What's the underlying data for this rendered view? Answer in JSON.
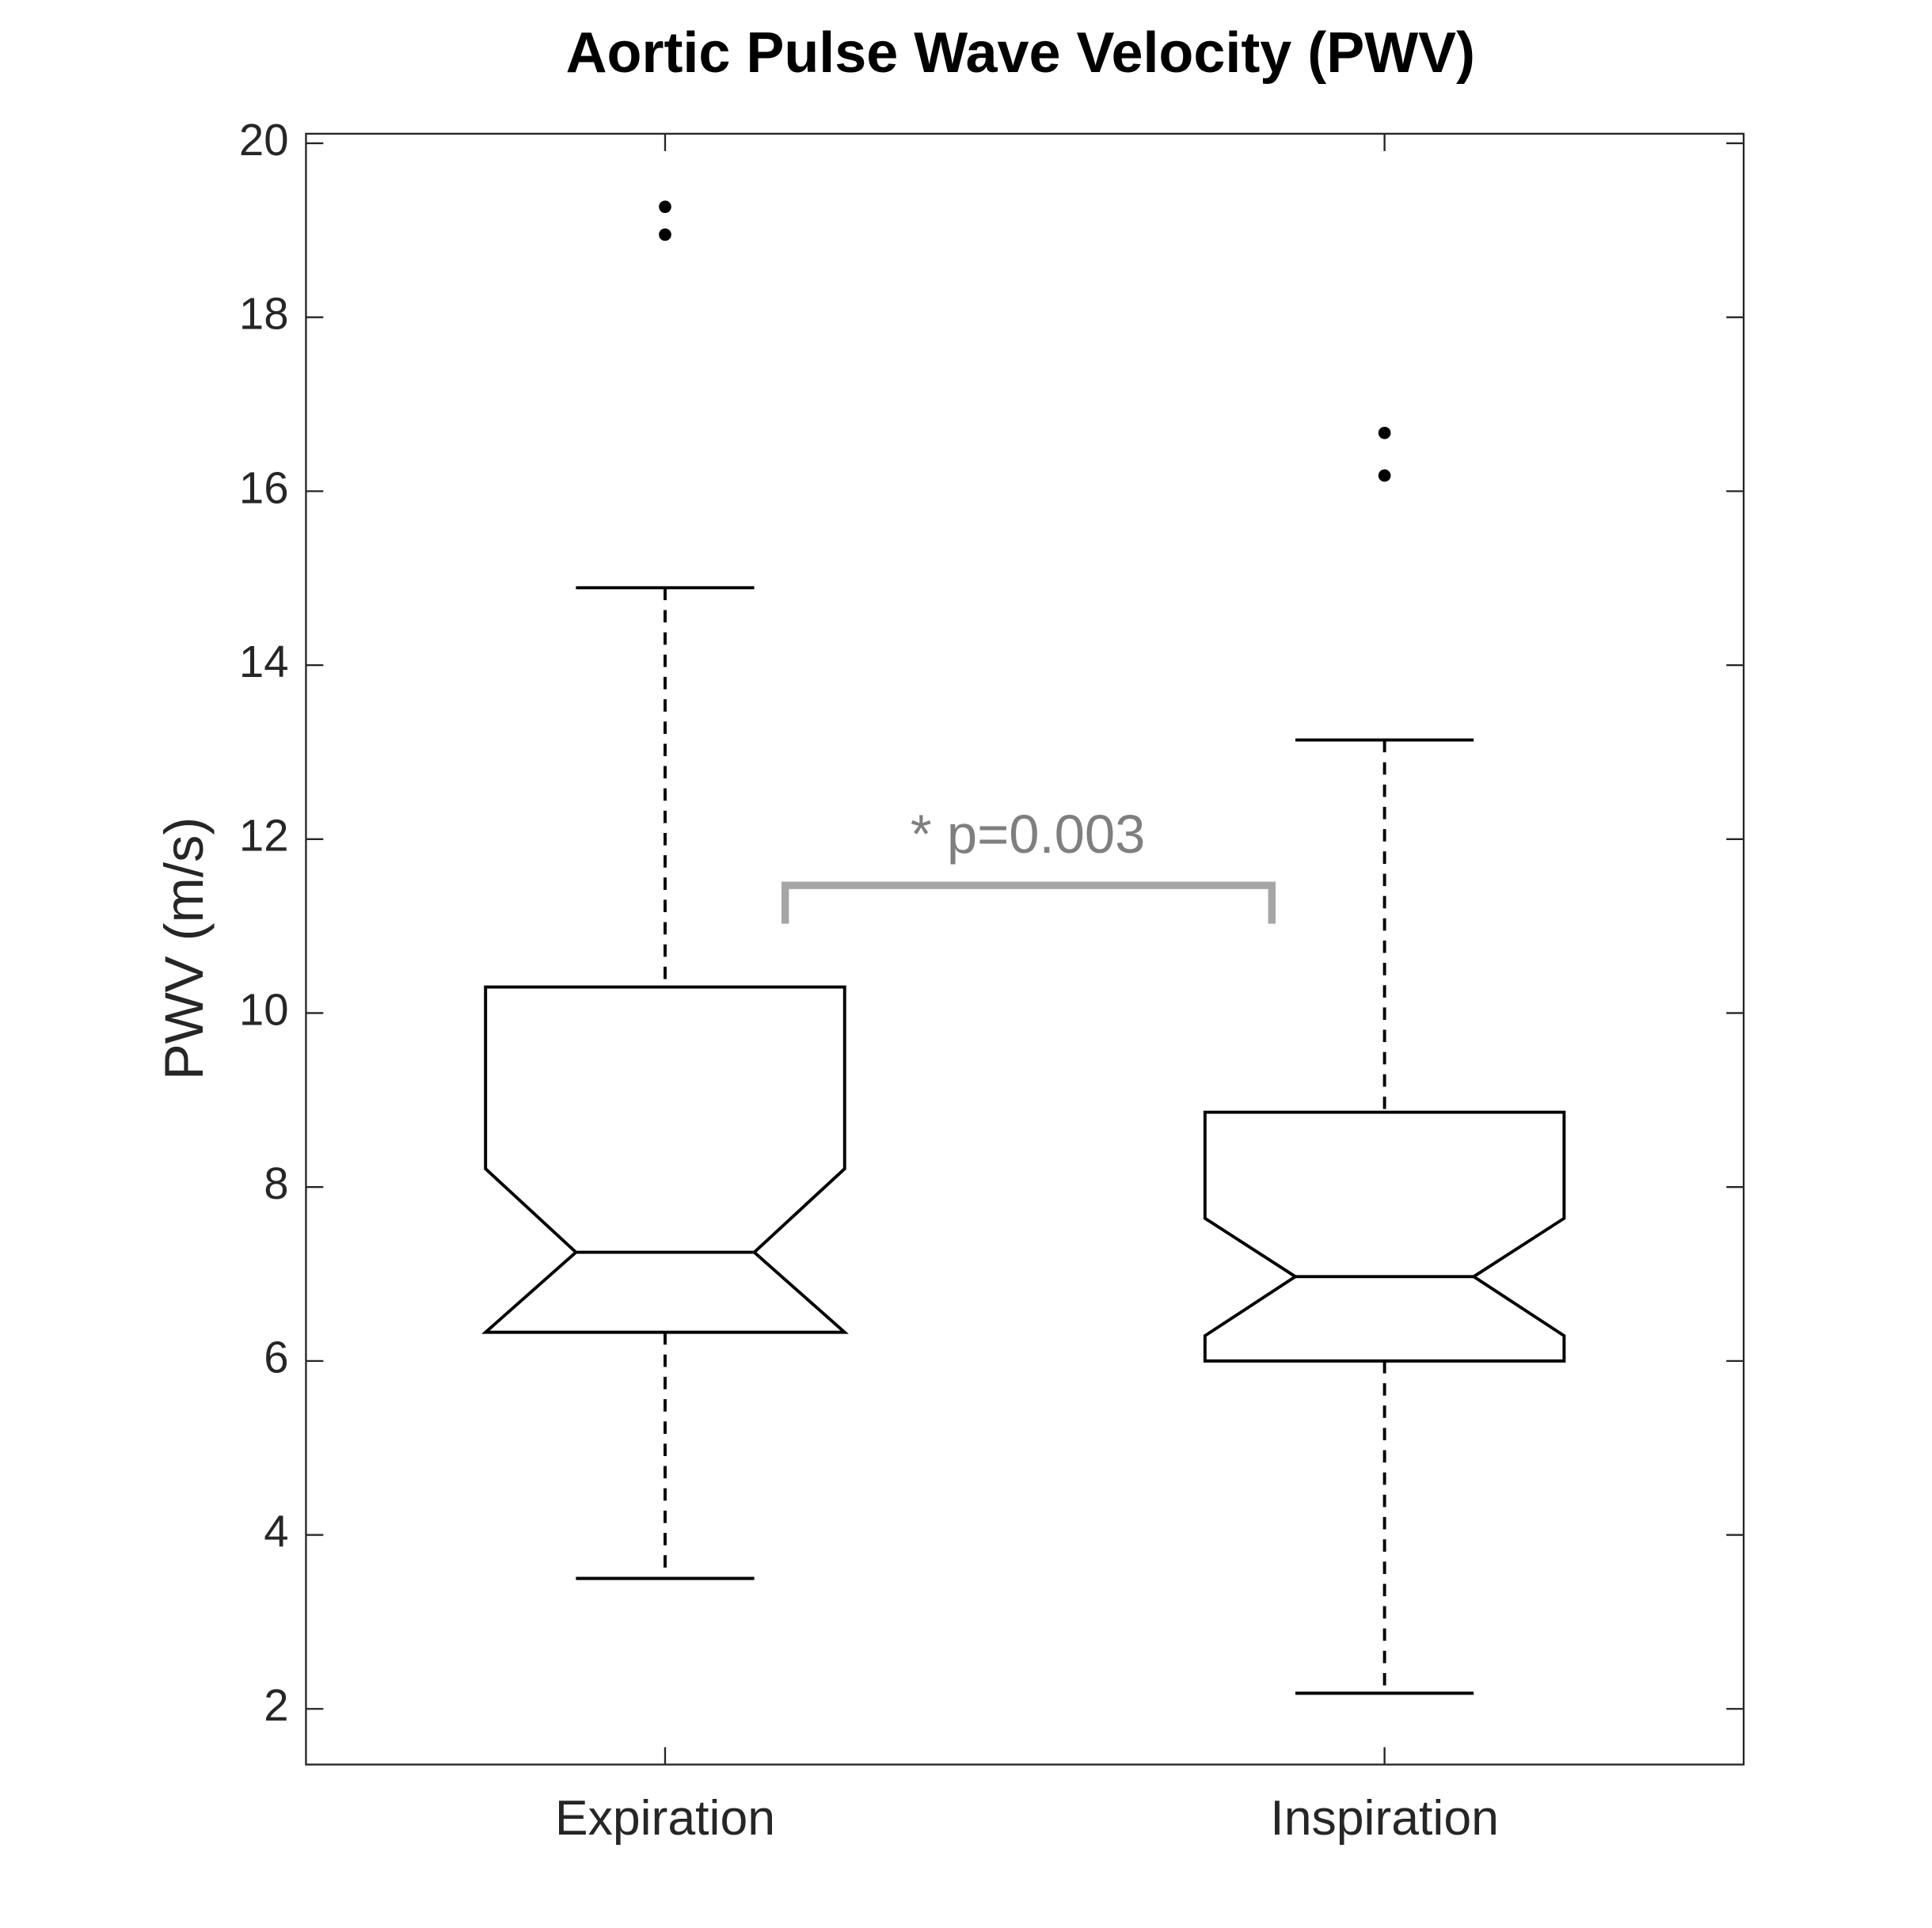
{
  "chart_data": {
    "type": "box",
    "title": "Aortic Pulse Wave Velocity (PWV)",
    "y_label": "PWV (m/s)",
    "categories": [
      "Expiration",
      "Inspiration"
    ],
    "boxes": [
      {
        "whisker_low": 3.5,
        "q1": 6.33,
        "notch_low": 6.29,
        "median": 7.25,
        "notch_high": 8.21,
        "q3": 10.3,
        "whisker_high": 14.89,
        "outliers": [
          19.27,
          18.95
        ]
      },
      {
        "whisker_low": 2.18,
        "q1": 6.0,
        "notch_low": 6.29,
        "median": 6.97,
        "notch_high": 7.64,
        "q3": 8.86,
        "whisker_high": 13.14,
        "outliers": [
          16.67,
          16.18
        ]
      }
    ],
    "color": "#000000",
    "ylim": [
      1.36,
      20.11
    ],
    "yticks": [
      2,
      4,
      6,
      8,
      10,
      12,
      14,
      16,
      18,
      20
    ],
    "annotation": "* p=0.003",
    "annotation_color": "#7f7f7f"
  }
}
